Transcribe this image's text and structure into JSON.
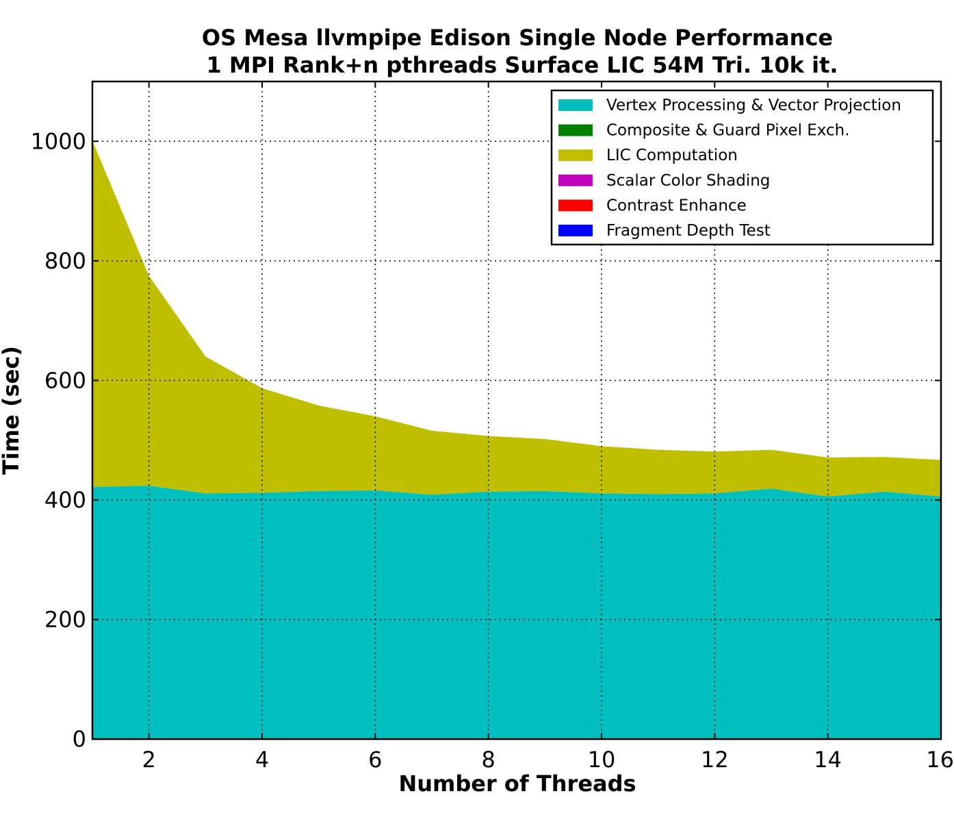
{
  "chart_data": {
    "type": "area",
    "stacked": true,
    "title_lines": [
      "OS Mesa llvmpipe Edison Single Node Performance",
      "1 MPI Rank+n pthreads Surface LIC 54M Tri. 10k it."
    ],
    "xlabel": "Number of Threads",
    "ylabel": "Time (sec)",
    "xlim": [
      1,
      16
    ],
    "ylim": [
      0,
      1100
    ],
    "xticks": [
      2,
      4,
      6,
      8,
      10,
      12,
      14,
      16
    ],
    "yticks": [
      0,
      200,
      400,
      600,
      800,
      1000
    ],
    "grid": true,
    "legend_position": "top-right",
    "x": [
      1,
      2,
      3,
      4,
      5,
      6,
      7,
      8,
      9,
      10,
      11,
      12,
      13,
      14,
      15,
      16
    ],
    "series": [
      {
        "name": "Vertex Processing & Vector Projection",
        "color": "#00bfbf",
        "values": [
          422,
          424,
          411,
          412,
          415,
          416,
          409,
          414,
          415,
          411,
          410,
          411,
          419,
          406,
          414,
          406
        ]
      },
      {
        "name": "Composite & Guard Pixel Exch.",
        "color": "#008000",
        "values": [
          0,
          0,
          0,
          0,
          0,
          0,
          0,
          0,
          0,
          0,
          0,
          0,
          0,
          0,
          0,
          0
        ]
      },
      {
        "name": "LIC Computation",
        "color": "#bfbf00",
        "values": [
          579,
          351,
          229,
          175,
          143,
          124,
          107,
          93,
          87,
          79,
          74,
          70,
          65,
          65,
          58,
          61
        ]
      },
      {
        "name": "Scalar Color Shading",
        "color": "#bf00bf",
        "values": [
          0,
          0,
          0,
          0,
          0,
          0,
          0,
          0,
          0,
          0,
          0,
          0,
          0,
          0,
          0,
          0
        ]
      },
      {
        "name": "Contrast Enhance",
        "color": "#ff0000",
        "values": [
          0,
          0,
          0,
          0,
          0,
          0,
          0,
          0,
          0,
          0,
          0,
          0,
          0,
          0,
          0,
          0
        ]
      },
      {
        "name": "Fragment Depth Test",
        "color": "#0000ff",
        "values": [
          0,
          0,
          0,
          0,
          0,
          0,
          0,
          0,
          0,
          0,
          0,
          0,
          0,
          0,
          0,
          0
        ]
      }
    ]
  }
}
